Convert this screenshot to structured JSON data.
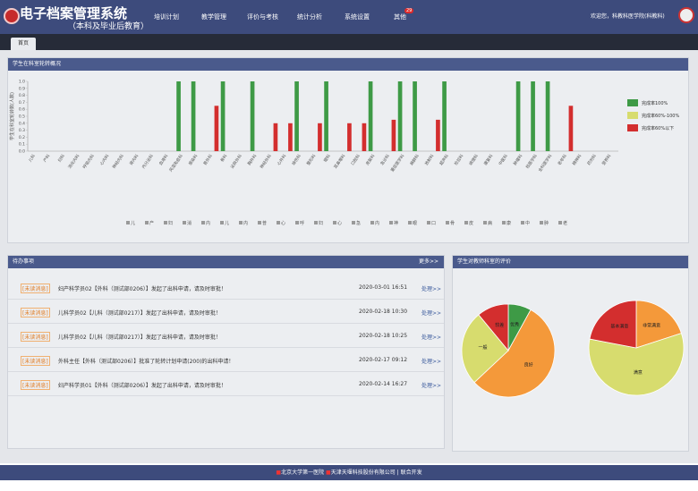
{
  "header": {
    "title": "电子档案管理系统",
    "subtitle": "（本科及毕业后教育）",
    "nav": [
      "培训计划",
      "教学管理",
      "评价与考核",
      "统计分析",
      "系统设置",
      "其他"
    ],
    "badge": "29",
    "user": "欢迎您，科教科医学院(科教科)"
  },
  "tab": "首页",
  "chart_data": [
    {
      "type": "bar",
      "title": "学生在科室轮转概况",
      "y_label": "学生在科室轮转数(人数)",
      "categories": [
        "儿科",
        "产科",
        "妇科",
        "消化内科",
        "呼吸内科",
        "心内科",
        "神经内科",
        "肾内科",
        "内分泌科",
        "血液科",
        "风湿免疫科",
        "感染科",
        "普外科",
        "骨科",
        "泌尿外科",
        "胸外科",
        "神经外科",
        "心外科",
        "烧伤科",
        "整形科",
        "眼科",
        "耳鼻喉科",
        "口腔科",
        "皮肤科",
        "急诊科",
        "重症医学科",
        "麻醉科",
        "放射科",
        "超声科",
        "检验科",
        "病理科",
        "康复科",
        "中医科",
        "肿瘤科",
        "核医学科",
        "全科医学科",
        "老年科",
        "精神科",
        "药剂科",
        "营养科"
      ],
      "series": [
        {
          "name": "完成率100%",
          "color": "#3e9a46",
          "values": [
            0,
            0,
            0,
            0,
            0,
            0,
            0,
            0,
            0,
            0,
            1,
            1,
            0,
            1,
            0,
            1,
            0,
            0,
            1,
            0,
            1,
            0,
            0,
            1,
            0,
            1,
            1,
            0,
            1,
            0,
            0,
            0,
            0,
            1,
            1,
            1,
            0,
            0,
            0,
            0
          ]
        },
        {
          "name": "完成率60%-100%",
          "color": "#d7dc6e",
          "values": [
            0,
            0,
            0,
            0,
            0,
            0,
            0,
            0,
            0,
            0,
            0,
            0,
            0,
            0,
            0,
            0,
            0,
            0,
            0,
            0,
            0,
            0,
            0,
            0,
            0,
            0,
            0,
            0,
            0,
            0,
            0,
            0,
            0,
            0,
            0,
            0,
            0,
            0,
            0,
            0
          ]
        },
        {
          "name": "完成率60%以下",
          "color": "#d32e2e",
          "values": [
            0,
            0,
            0,
            0,
            0,
            0,
            0,
            0,
            0,
            0,
            0,
            0,
            0.65,
            0,
            0,
            0,
            0.4,
            0.4,
            0,
            0.4,
            0,
            0.4,
            0.4,
            0,
            0.45,
            0,
            0,
            0.45,
            0,
            0,
            0,
            0,
            0,
            0,
            0,
            0,
            0.65,
            0,
            0,
            0
          ]
        }
      ],
      "ylim": [
        0,
        1
      ],
      "yticks": [
        {
          "value": 0,
          "label": "0.0"
        },
        0.1,
        0.2,
        0.3,
        0.4,
        0.5,
        0.6,
        0.7,
        0.8,
        0.9,
        {
          "value": 1,
          "label": "1.0"
        }
      ],
      "grid": false,
      "legend": "right",
      "short_labels": [
        "儿",
        "产",
        "妇",
        "消",
        "内",
        "儿",
        "内",
        "普",
        "心",
        "呼",
        "妇",
        "心",
        "急",
        "内",
        "神",
        "眼",
        "口",
        "骨",
        "皮",
        "病",
        "康",
        "中",
        "肿",
        "老"
      ]
    },
    {
      "type": "pie",
      "categories": [
        "优秀",
        "良好",
        "一般",
        "较差"
      ],
      "values": [
        8,
        55,
        26,
        11
      ],
      "colors": [
        "#3e9a46",
        "#f4993a",
        "#d7dc6e",
        "#d32e2e"
      ]
    },
    {
      "type": "pie",
      "categories": [
        "非常满意",
        "满意",
        "基本满意"
      ],
      "values": [
        20,
        58,
        22
      ],
      "colors": [
        "#f4993a",
        "#d7dc6e",
        "#d32e2e"
      ]
    }
  ],
  "todo": {
    "title": "待办事项",
    "more": "更多>>",
    "items": [
      {
        "tag": "[未读消息]",
        "text": "妇产科学员02【外科（测试部0206）】发起了出科申请，请及时审批！",
        "date": "2020-03-01 16:51",
        "action": "处理>>"
      },
      {
        "tag": "[未读消息]",
        "text": "儿科学员02【儿科（测试部0217）】发起了出科申请，请及时审批！",
        "date": "2020-02-18 10:30",
        "action": "处理>>"
      },
      {
        "tag": "[未读消息]",
        "text": "儿科学员02【儿科（测试部0217）】发起了出科申请，请及时审批！",
        "date": "2020-02-18 10:25",
        "action": "处理>>"
      },
      {
        "tag": "[未读消息]",
        "text": "外科主任【外科（测试部0206）】批准了轮转计划申请(200)的出科申请！",
        "date": "2020-02-17 09:12",
        "action": "处理>>"
      },
      {
        "tag": "[未读消息]",
        "text": "妇产科学员01【外科（测试部0206）】发起了出科申请，请及时审批！",
        "date": "2020-02-14 16:27",
        "action": "处理>>"
      }
    ]
  },
  "evaluation": {
    "title": "学生对教师科室的评价"
  },
  "footer": [
    "北京大学第一医院",
    "天津天堰科技股份有限公司",
    "联合开发"
  ]
}
